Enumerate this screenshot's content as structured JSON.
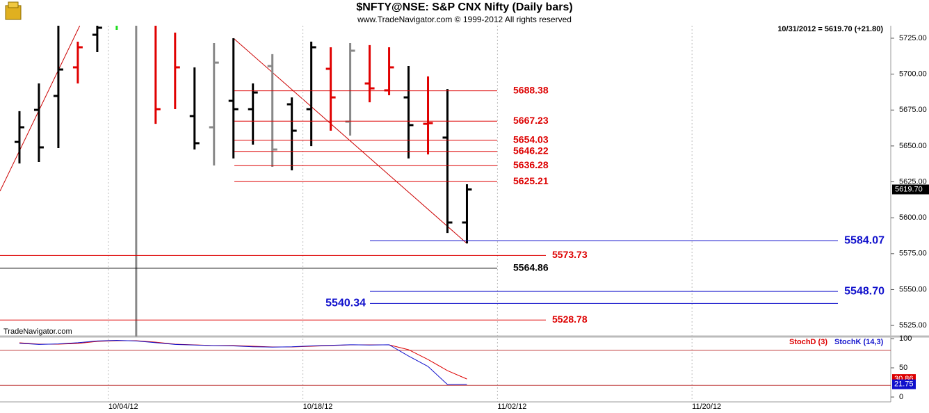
{
  "chart_data": {
    "type": "ohlc",
    "title": "$NFTY@NSE:  S&P CNX Nifty  (Daily bars)",
    "subtitle": "www.TradeNavigator.com © 1999-2012 All rights reserved",
    "quote": "10/31/2012 = 5619.70 (+21.80)",
    "watermark": "TradeNavigator.com",
    "xlim": [
      0,
      45.75
    ],
    "xticks": [
      {
        "value": 5.57,
        "label": "10/04/12"
      },
      {
        "value": 15.57,
        "label": "10/18/12"
      },
      {
        "value": 25.57,
        "label": "11/02/12"
      },
      {
        "value": 35.57,
        "label": "11/20/12"
      }
    ],
    "ylim": [
      5517.3,
      5733.7
    ],
    "yticks": [
      {
        "value": 5525,
        "label": "5525.00"
      },
      {
        "value": 5550,
        "label": "5550.00"
      },
      {
        "value": 5575,
        "label": "5575.00"
      },
      {
        "value": 5600,
        "label": "5600.00"
      },
      {
        "value": 5625,
        "label": "5625.00"
      },
      {
        "value": 5650,
        "label": "5650.00"
      },
      {
        "value": 5675,
        "label": "5675.00"
      },
      {
        "value": 5700,
        "label": "5700.00"
      },
      {
        "value": 5725,
        "label": "5725.00"
      }
    ],
    "last_price": {
      "value": 5619.7,
      "label": "5619.70"
    },
    "bars": {
      "x": [
        1,
        2,
        3,
        4,
        5,
        6,
        7,
        8,
        9,
        10,
        11,
        12,
        13,
        14,
        15,
        16,
        17,
        18,
        19,
        20,
        21,
        22,
        23,
        24
      ],
      "open": [
        5652.8,
        5675.1,
        5684.8,
        5704.7,
        5727.4,
        null,
        null,
        null,
        null,
        5670.8,
        5663,
        5681.4,
        5675.6,
        5705.6,
        5679,
        5675.6,
        5703.7,
        5666.9,
        5693.5,
        5688.7,
        5683.8,
        5665.4,
        5655.8,
        5596.7
      ],
      "high": [
        5674.2,
        5693.5,
        5740,
        5722.6,
        5740,
        5740,
        5740,
        5740,
        5728.9,
        5704.7,
        5721.6,
        5725,
        5693.5,
        5713.9,
        5683.8,
        5722.6,
        5718.7,
        5721.6,
        5720.2,
        5718.7,
        5705.6,
        5698.4,
        5689.6,
        5623.3
      ],
      "low": [
        5637.8,
        5638.8,
        5648.5,
        5693.5,
        5715.3,
        5730.8,
        5517.3,
        5665.4,
        5675.6,
        5647.5,
        5636.4,
        5641.3,
        5650.9,
        5635.4,
        5633,
        5649.9,
        5660.6,
        5657.2,
        5680.4,
        5685.3,
        5641.3,
        5644.1,
        5589.4,
        5582.1
      ],
      "close": [
        5663,
        5649,
        5703.2,
        5718.7,
        5732.3,
        null,
        null,
        5675.6,
        5704.7,
        5651.9,
        5708,
        5675.6,
        5687.2,
        5647.5,
        5660.6,
        5718.7,
        5683.8,
        5716.3,
        5690.1,
        5704.7,
        5664.5,
        5665.9,
        5596.7,
        5619.7
      ],
      "colors": [
        "#000000",
        "#000000",
        "#000000",
        "#e00000",
        "#000000",
        "#22dd22",
        "#888888",
        "#e00000",
        "#e00000",
        "#000000",
        "#888888",
        "#000000",
        "#000000",
        "#888888",
        "#000000",
        "#000000",
        "#e00000",
        "#888888",
        "#e00000",
        "#e00000",
        "#000000",
        "#e00000",
        "#000000",
        "#000000"
      ]
    },
    "levels": [
      {
        "value": 5688.38,
        "color": "#dd0000"
      },
      {
        "value": 5667.23,
        "color": "#dd0000"
      },
      {
        "value": 5654.03,
        "color": "#dd0000"
      },
      {
        "value": 5646.22,
        "color": "#dd0000"
      },
      {
        "value": 5636.28,
        "color": "#dd0000"
      },
      {
        "value": 5625.21,
        "color": "#dd0000"
      },
      {
        "value": 5584.07,
        "color": "#1010cc"
      },
      {
        "value": 5573.73,
        "color": "#dd0000"
      },
      {
        "value": 5564.86,
        "color": "#000000"
      },
      {
        "value": 5548.7,
        "label": "5548.70",
        "color": "#1010cc"
      },
      {
        "value": 5540.34,
        "color": "#1010cc"
      },
      {
        "value": 5528.78,
        "color": "#dd0000"
      }
    ],
    "trendlines": [
      {
        "x": [
          0,
          4.1
        ],
        "y": [
          5618.5,
          5733.7
        ],
        "color": "#cc0000"
      },
      {
        "x": [
          12,
          24
        ],
        "y": [
          5725,
          5582.1
        ],
        "color": "#cc0000"
      }
    ],
    "stochastic": {
      "ylim": [
        -8.3,
        103.6
      ],
      "yticks": [
        0,
        50,
        100
      ],
      "bands": [
        20,
        80
      ],
      "series": [
        {
          "name": "StochD (3)",
          "color": "#dd0000",
          "values": [
            92.9,
            90.5,
            90.5,
            91.7,
            95.2,
            96.4,
            96.4,
            94,
            90.5,
            89.3,
            88.1,
            88.1,
            86.9,
            85.7,
            85.7,
            86.9,
            88.1,
            89.3,
            89.3,
            89.3,
            81,
            64.3,
            45.2,
            30.86
          ]
        },
        {
          "name": "StochK (14,3)",
          "color": "#1010cc",
          "values": [
            92,
            90,
            91,
            93,
            96,
            97,
            96,
            93,
            90,
            89,
            88,
            87.5,
            86,
            85.5,
            86,
            87.5,
            88.5,
            89.5,
            89,
            89.5,
            70.2,
            52.4,
            21.4,
            21.75
          ]
        }
      ]
    }
  }
}
